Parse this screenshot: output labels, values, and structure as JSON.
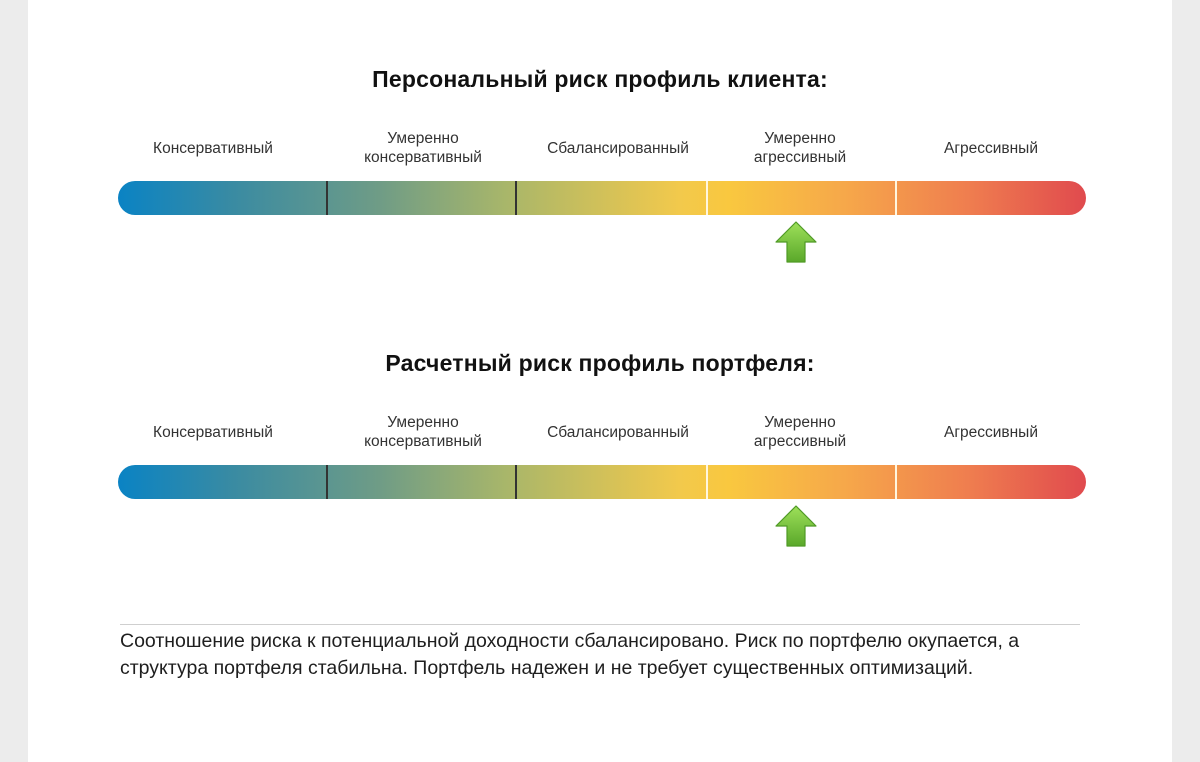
{
  "scales": [
    {
      "title": "Персональный риск профиль клиента:",
      "indicator_position": 3.5
    },
    {
      "title": "Расчетный риск профиль портфеля:",
      "indicator_position": 3.5
    }
  ],
  "categories": [
    {
      "line1": "Консервативный",
      "line2": ""
    },
    {
      "line1": "Умеренно",
      "line2": "консервативный"
    },
    {
      "line1": "Сбалансированный",
      "line2": ""
    },
    {
      "line1": "Умеренно",
      "line2": "агрессивный"
    },
    {
      "line1": "Агрессивный",
      "line2": ""
    }
  ],
  "colors": {
    "indicator": "#7dc43a",
    "gradient_start": "#0a83c4",
    "gradient_end": "#e04a4e"
  },
  "summary": "Соотношение риска к потенциальной доходности сбалансировано. Риск по портфелю окупается, а структура портфеля стабильна. Портфель надежен и не требует существенных оптимизаций."
}
